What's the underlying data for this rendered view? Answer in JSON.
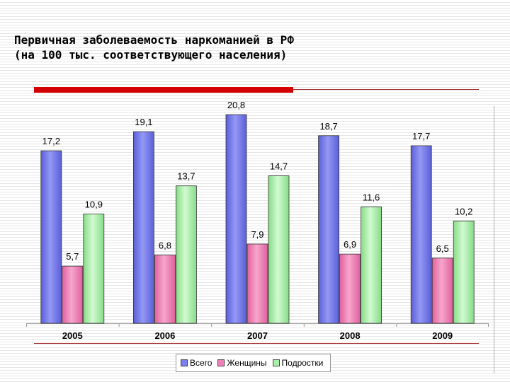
{
  "title": {
    "line1": "Первичная заболеваемость наркоманией в РФ",
    "line2": "(на 100 тыс. соответствующего населения)"
  },
  "chart_data": {
    "type": "bar",
    "title": "Первичная заболеваемость наркоманией в РФ (на 100 тыс. соответствующего населения)",
    "categories": [
      "2005",
      "2006",
      "2007",
      "2008",
      "2009"
    ],
    "series": [
      {
        "name": "Всего",
        "values": [
          17.2,
          19.1,
          20.8,
          18.7,
          17.7
        ],
        "labels": [
          "17,2",
          "19,1",
          "20,8",
          "18,7",
          "17,7"
        ],
        "color": "#7b7ff0"
      },
      {
        "name": "Женщины",
        "values": [
          5.7,
          6.8,
          7.9,
          6.9,
          6.5
        ],
        "labels": [
          "5,7",
          "6,8",
          "7,9",
          "6,9",
          "6,5"
        ],
        "color": "#ef80b8"
      },
      {
        "name": "Подростки",
        "values": [
          10.9,
          13.7,
          14.7,
          11.6,
          10.2
        ],
        "labels": [
          "10,9",
          "13,7",
          "14,7",
          "11,6",
          "10,2"
        ],
        "color": "#a8efa8"
      }
    ],
    "xlabel": "",
    "ylabel": "",
    "ylim": [
      0,
      22
    ],
    "grid": false,
    "legend": "bottom"
  }
}
